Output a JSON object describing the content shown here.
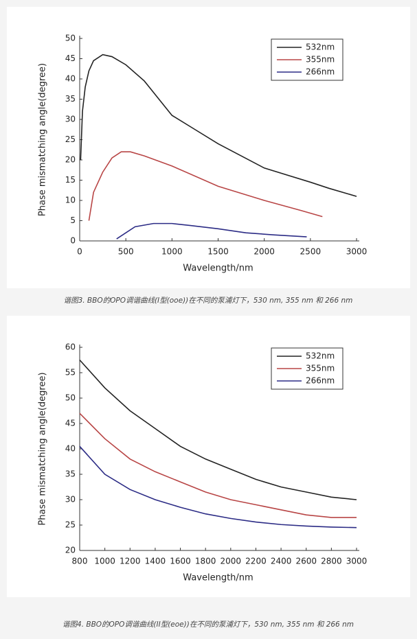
{
  "chart_data": [
    {
      "type": "line",
      "caption": "谐图3. BBO的OPO调谐曲线(I型(ooe))在不同的泵浦灯下，530 nm, 355 nm 和 266 nm",
      "xlabel": "Wavelength/nm",
      "ylabel": "Phase mismatching angle(degree)",
      "xlim": [
        0,
        3000
      ],
      "xticks": [
        0,
        500,
        1000,
        1500,
        2000,
        2500,
        3000
      ],
      "ylim": [
        0,
        50
      ],
      "yticks": [
        0,
        5,
        10,
        15,
        20,
        25,
        30,
        35,
        40,
        45,
        50
      ],
      "legend": "top-right",
      "series": [
        {
          "name": "532nm",
          "color": "#222222",
          "x": [
            10,
            30,
            60,
            100,
            150,
            250,
            350,
            500,
            700,
            1000,
            1250,
            1500,
            2000,
            2500,
            2700,
            3000
          ],
          "values": [
            20,
            32,
            38,
            42,
            44.5,
            46,
            45.5,
            43.5,
            39.5,
            31,
            27.5,
            24,
            18,
            14.5,
            13,
            11
          ]
        },
        {
          "name": "355nm",
          "color": "#b84545",
          "x": [
            100,
            150,
            250,
            350,
            450,
            550,
            700,
            1000,
            1500,
            2000,
            2400,
            2630
          ],
          "values": [
            5,
            12,
            17,
            20.5,
            22,
            22,
            21,
            18.5,
            13.5,
            10,
            7.5,
            6
          ]
        },
        {
          "name": "266nm",
          "color": "#2b2b85",
          "x": [
            400,
            500,
            600,
            800,
            1000,
            1200,
            1500,
            1800,
            2100,
            2460
          ],
          "values": [
            0.5,
            2,
            3.5,
            4.3,
            4.3,
            3.8,
            3,
            2,
            1.5,
            1
          ]
        }
      ]
    },
    {
      "type": "line",
      "caption": "谐图4. BBO的OPO调谐曲线(II型(eoe))在不同的泵浦灯下，530 nm, 355 nm 和 266 nm",
      "xlabel": "Wavelength/nm",
      "ylabel": "Phase mismatching angle(degree)",
      "xlim": [
        800,
        3000
      ],
      "xticks": [
        800,
        1000,
        1200,
        1400,
        1600,
        1800,
        2000,
        2200,
        2400,
        2600,
        2800,
        3000
      ],
      "ylim": [
        20,
        60
      ],
      "yticks": [
        20,
        25,
        30,
        35,
        40,
        45,
        50,
        55,
        60
      ],
      "legend": "top-right",
      "x": [
        800,
        1000,
        1200,
        1400,
        1600,
        1800,
        2000,
        2200,
        2400,
        2600,
        2800,
        3000
      ],
      "series": [
        {
          "name": "532nm",
          "color": "#222222",
          "values": [
            57.5,
            52,
            47.5,
            44,
            40.5,
            38,
            36,
            34,
            32.5,
            31.5,
            30.5,
            30
          ]
        },
        {
          "name": "355nm",
          "color": "#b84545",
          "values": [
            47,
            42,
            38,
            35.5,
            33.5,
            31.5,
            30,
            29,
            28,
            27,
            26.5,
            26.5
          ]
        },
        {
          "name": "266nm",
          "color": "#2b2b85",
          "values": [
            40.5,
            35,
            32,
            30,
            28.5,
            27.2,
            26.3,
            25.6,
            25.1,
            24.8,
            24.6,
            24.5
          ]
        }
      ]
    }
  ]
}
